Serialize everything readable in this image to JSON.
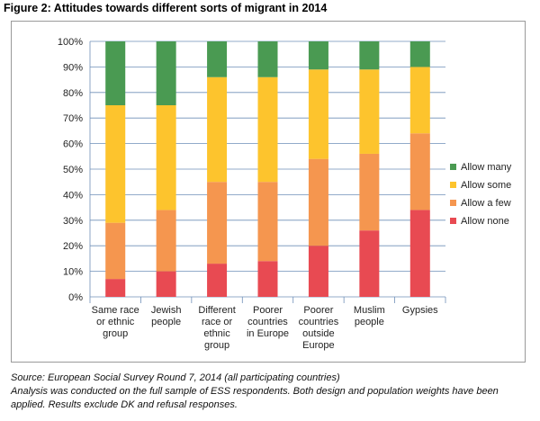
{
  "figure_title": "Figure 2: Attitudes towards different sorts of migrant in 2014",
  "source_lines": [
    "Source: European Social Survey Round 7, 2014 (all participating countries)",
    "Analysis was conducted on the full sample of ESS respondents. Both design and population weights have been",
    "applied. Results exclude DK and refusal responses."
  ],
  "chart_data": {
    "type": "bar",
    "stacked": true,
    "orientation": "vertical",
    "title": "Figure 2: Attitudes towards different sorts of migrant in 2014",
    "xlabel": "",
    "ylabel": "",
    "ylim": [
      0,
      100
    ],
    "yticks": [
      "0%",
      "10%",
      "20%",
      "30%",
      "40%",
      "50%",
      "60%",
      "70%",
      "80%",
      "90%",
      "100%"
    ],
    "grid": true,
    "legend_position": "right",
    "categories": [
      [
        "Same race",
        "or ethnic",
        "group"
      ],
      [
        "Jewish",
        "people"
      ],
      [
        "Different",
        "race or",
        "ethnic",
        "group"
      ],
      [
        "Poorer",
        "countries",
        "in Europe"
      ],
      [
        "Poorer",
        "countries",
        "outside",
        "Europe"
      ],
      [
        "Muslim",
        "people"
      ],
      [
        "Gypsies"
      ]
    ],
    "series": [
      {
        "name": "Allow none",
        "color": "#e84a52",
        "values": [
          7,
          10,
          13,
          14,
          20,
          26,
          34
        ]
      },
      {
        "name": "Allow a few",
        "color": "#f5964f",
        "values": [
          22,
          24,
          32,
          31,
          34,
          30,
          30
        ]
      },
      {
        "name": "Allow some",
        "color": "#fdc42d",
        "values": [
          46,
          41,
          41,
          41,
          35,
          33,
          26
        ]
      },
      {
        "name": "Allow many",
        "color": "#4a9a52",
        "values": [
          25,
          25,
          14,
          14,
          11,
          11,
          10
        ]
      }
    ],
    "legend_order": [
      "Allow many",
      "Allow some",
      "Allow a few",
      "Allow none"
    ]
  }
}
